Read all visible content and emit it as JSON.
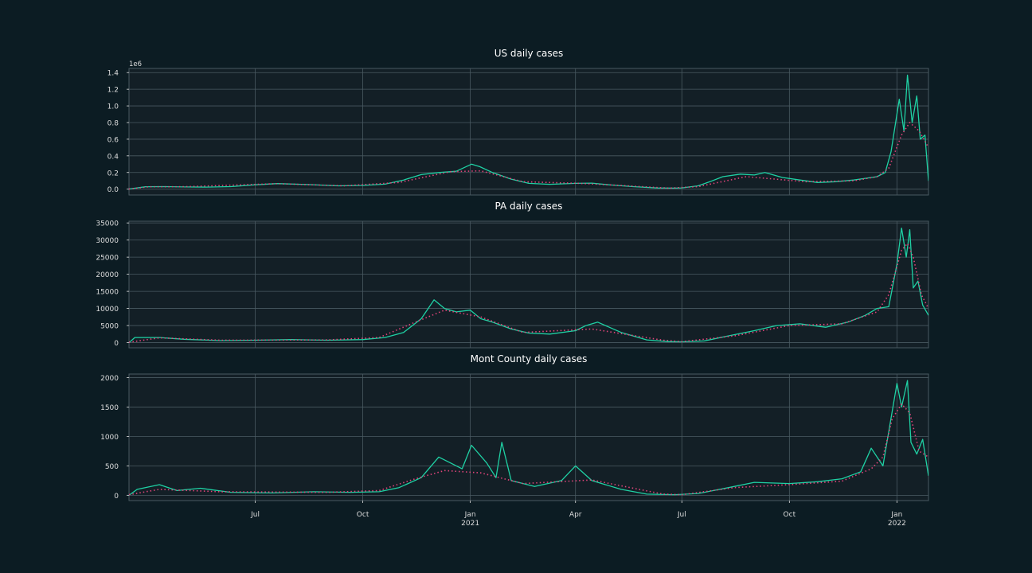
{
  "style": {
    "figure_bg": "#0c1c23",
    "axes_bg": "#131f26",
    "grid_color": "#4a5a62",
    "text_color": "#dddddd",
    "title_color": "#ffffff",
    "line_color": "#1fd1a4",
    "avg_color": "#e0447a"
  },
  "x_axis": {
    "ticks": [
      {
        "date": "2020-07-01",
        "label": "Jul",
        "sub": ""
      },
      {
        "date": "2020-10-01",
        "label": "Oct",
        "sub": ""
      },
      {
        "date": "2021-01-01",
        "label": "Jan",
        "sub": "2021"
      },
      {
        "date": "2021-04-01",
        "label": "Apr",
        "sub": ""
      },
      {
        "date": "2021-07-01",
        "label": "Jul",
        "sub": ""
      },
      {
        "date": "2021-10-01",
        "label": "Oct",
        "sub": ""
      },
      {
        "date": "2022-01-01",
        "label": "Jan",
        "sub": "2022"
      }
    ]
  },
  "chart_data": [
    {
      "type": "line",
      "title": "US daily cases",
      "x_range": [
        "2020-03-15",
        "2022-01-28"
      ],
      "ylim": [
        -70000,
        1450000
      ],
      "offset_label": "1e6",
      "yticks": [
        0,
        200000,
        400000,
        600000,
        800000,
        1000000,
        1200000,
        1400000
      ],
      "ytick_labels": [
        "0.0",
        "0.2",
        "0.4",
        "0.6",
        "0.8",
        "1.0",
        "1.2",
        "1.4"
      ],
      "grid": true,
      "series": [
        {
          "style": "solid",
          "x": [
            "2020-03-15",
            "2020-03-29",
            "2020-04-15",
            "2020-05-01",
            "2020-05-20",
            "2020-06-10",
            "2020-07-01",
            "2020-07-20",
            "2020-08-15",
            "2020-09-10",
            "2020-10-01",
            "2020-10-20",
            "2020-11-05",
            "2020-11-20",
            "2020-12-05",
            "2020-12-20",
            "2021-01-02",
            "2021-01-09",
            "2021-01-20",
            "2021-02-05",
            "2021-02-20",
            "2021-03-10",
            "2021-04-01",
            "2021-04-15",
            "2021-05-01",
            "2021-05-20",
            "2021-06-10",
            "2021-06-25",
            "2021-07-01",
            "2021-07-15",
            "2021-07-25",
            "2021-08-05",
            "2021-08-20",
            "2021-09-01",
            "2021-09-10",
            "2021-09-25",
            "2021-10-10",
            "2021-10-25",
            "2021-11-10",
            "2021-11-25",
            "2021-12-05",
            "2021-12-15",
            "2021-12-22",
            "2021-12-27",
            "2022-01-03",
            "2022-01-07",
            "2022-01-10",
            "2022-01-14",
            "2022-01-18",
            "2022-01-21",
            "2022-01-25",
            "2022-01-28"
          ],
          "values": [
            2000,
            28000,
            30000,
            27000,
            25000,
            30000,
            52000,
            67000,
            55000,
            40000,
            45000,
            60000,
            110000,
            175000,
            200000,
            215000,
            300000,
            270000,
            200000,
            120000,
            70000,
            58000,
            70000,
            72000,
            50000,
            30000,
            14000,
            12000,
            15000,
            40000,
            90000,
            150000,
            180000,
            170000,
            200000,
            140000,
            110000,
            80000,
            90000,
            110000,
            130000,
            150000,
            200000,
            450000,
            1080000,
            700000,
            1370000,
            800000,
            1120000,
            600000,
            650000,
            100000
          ]
        },
        {
          "style": "dotted",
          "x": [
            "2020-03-15",
            "2020-04-01",
            "2020-05-01",
            "2020-07-20",
            "2020-09-15",
            "2020-11-01",
            "2020-12-15",
            "2021-01-10",
            "2021-02-15",
            "2021-04-10",
            "2021-06-20",
            "2021-07-15",
            "2021-08-25",
            "2021-10-15",
            "2021-11-25",
            "2021-12-15",
            "2021-12-25",
            "2022-01-05",
            "2022-01-12",
            "2022-01-20",
            "2022-01-28"
          ],
          "values": [
            2000,
            28000,
            29000,
            66000,
            40000,
            80000,
            210000,
            220000,
            90000,
            67000,
            12000,
            30000,
            150000,
            90000,
            100000,
            150000,
            250000,
            650000,
            800000,
            700000,
            500000
          ]
        }
      ]
    },
    {
      "type": "line",
      "title": "PA daily cases",
      "x_range": [
        "2020-03-15",
        "2022-01-28"
      ],
      "ylim": [
        -1500,
        35500
      ],
      "yticks": [
        0,
        5000,
        10000,
        15000,
        20000,
        25000,
        30000,
        35000
      ],
      "ytick_labels": [
        "0",
        "5000",
        "10000",
        "15000",
        "20000",
        "25000",
        "30000",
        "35000"
      ],
      "grid": true,
      "series": [
        {
          "style": "solid",
          "x": [
            "2020-03-15",
            "2020-03-20",
            "2020-04-10",
            "2020-05-01",
            "2020-06-01",
            "2020-07-01",
            "2020-08-01",
            "2020-09-01",
            "2020-10-01",
            "2020-10-20",
            "2020-11-05",
            "2020-11-20",
            "2020-12-01",
            "2020-12-10",
            "2020-12-20",
            "2021-01-01",
            "2021-01-10",
            "2021-01-20",
            "2021-02-05",
            "2021-02-20",
            "2021-03-10",
            "2021-04-01",
            "2021-04-10",
            "2021-04-20",
            "2021-05-10",
            "2021-06-01",
            "2021-06-20",
            "2021-07-01",
            "2021-07-20",
            "2021-08-10",
            "2021-09-01",
            "2021-09-20",
            "2021-10-10",
            "2021-11-01",
            "2021-11-20",
            "2021-12-05",
            "2021-12-15",
            "2021-12-25",
            "2022-01-01",
            "2022-01-05",
            "2022-01-09",
            "2022-01-12",
            "2022-01-15",
            "2022-01-19",
            "2022-01-23",
            "2022-01-28"
          ],
          "values": [
            0,
            1500,
            1500,
            1000,
            600,
            700,
            900,
            700,
            900,
            1500,
            3000,
            7000,
            12500,
            10000,
            9000,
            9500,
            7000,
            6000,
            4000,
            2800,
            2500,
            3500,
            5000,
            6000,
            3000,
            800,
            300,
            250,
            500,
            2000,
            3500,
            5000,
            5500,
            4500,
            6000,
            8000,
            10000,
            10500,
            23000,
            33500,
            25000,
            33000,
            16000,
            18000,
            11000,
            8000
          ]
        },
        {
          "style": "dotted",
          "x": [
            "2020-03-15",
            "2020-04-10",
            "2020-06-01",
            "2020-09-01",
            "2020-10-15",
            "2020-11-15",
            "2020-12-10",
            "2021-01-10",
            "2021-02-15",
            "2021-04-15",
            "2021-06-15",
            "2021-07-01",
            "2021-08-15",
            "2021-10-01",
            "2021-11-15",
            "2021-12-15",
            "2021-12-25",
            "2022-01-05",
            "2022-01-10",
            "2022-01-15",
            "2022-01-22",
            "2022-01-28"
          ],
          "values": [
            100,
            1400,
            700,
            800,
            1500,
            6000,
            9500,
            7500,
            3000,
            4000,
            700,
            300,
            2000,
            5000,
            5500,
            9000,
            14000,
            27000,
            29000,
            25000,
            14000,
            10000
          ]
        }
      ]
    },
    {
      "type": "line",
      "title": "Mont County daily cases",
      "x_range": [
        "2020-03-15",
        "2022-01-28"
      ],
      "ylim": [
        -90,
        2060
      ],
      "yticks": [
        0,
        500,
        1000,
        1500,
        2000
      ],
      "ytick_labels": [
        "0",
        "500",
        "1000",
        "1500",
        "2000"
      ],
      "grid": true,
      "series": [
        {
          "style": "solid",
          "x": [
            "2020-03-15",
            "2020-03-22",
            "2020-04-10",
            "2020-04-25",
            "2020-05-15",
            "2020-06-10",
            "2020-07-15",
            "2020-08-20",
            "2020-09-20",
            "2020-10-15",
            "2020-11-01",
            "2020-11-20",
            "2020-12-05",
            "2020-12-15",
            "2020-12-25",
            "2021-01-02",
            "2021-01-15",
            "2021-01-23",
            "2021-01-28",
            "2021-02-05",
            "2021-02-25",
            "2021-03-20",
            "2021-04-01",
            "2021-04-15",
            "2021-05-10",
            "2021-06-01",
            "2021-06-25",
            "2021-07-15",
            "2021-08-10",
            "2021-09-01",
            "2021-10-01",
            "2021-10-25",
            "2021-11-15",
            "2021-12-01",
            "2021-12-10",
            "2021-12-20",
            "2022-01-01",
            "2022-01-05",
            "2022-01-10",
            "2022-01-13",
            "2022-01-18",
            "2022-01-23",
            "2022-01-28"
          ],
          "values": [
            0,
            100,
            180,
            80,
            120,
            50,
            40,
            60,
            50,
            60,
            130,
            300,
            650,
            550,
            450,
            850,
            550,
            300,
            900,
            250,
            150,
            250,
            500,
            250,
            100,
            20,
            10,
            30,
            130,
            220,
            200,
            230,
            280,
            400,
            800,
            500,
            1900,
            1500,
            1950,
            900,
            700,
            950,
            330
          ]
        },
        {
          "style": "dotted",
          "x": [
            "2020-03-15",
            "2020-04-10",
            "2020-06-01",
            "2020-09-01",
            "2020-10-15",
            "2020-11-15",
            "2020-12-10",
            "2021-01-10",
            "2021-02-15",
            "2021-04-15",
            "2021-06-15",
            "2021-07-01",
            "2021-08-15",
            "2021-10-01",
            "2021-11-15",
            "2021-12-10",
            "2021-12-20",
            "2021-12-28",
            "2022-01-05",
            "2022-01-12",
            "2022-01-20",
            "2022-01-28"
          ],
          "values": [
            10,
            100,
            60,
            50,
            80,
            280,
            420,
            380,
            200,
            260,
            20,
            10,
            130,
            180,
            240,
            450,
            650,
            1300,
            1550,
            1400,
            750,
            650
          ]
        }
      ]
    }
  ]
}
